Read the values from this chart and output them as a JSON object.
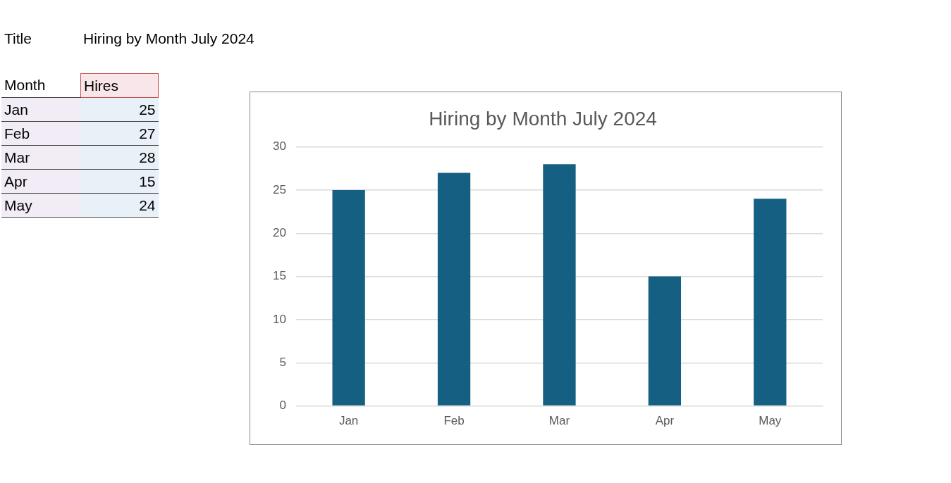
{
  "chart_data": [
    {
      "type": "other",
      "annotations": [
        "Title",
        "Hiring by Month July 2024",
        "Month",
        "Hires"
      ],
      "categories": [
        "Jan",
        "Feb",
        "Mar",
        "Apr",
        "May"
      ],
      "values": [
        25,
        27,
        28,
        15,
        24
      ],
      "value_labels": [
        "25",
        "27",
        "28",
        "15",
        "24"
      ]
    },
    {
      "type": "bar",
      "title": "Hiring by Month July 2024",
      "categories": [
        "Jan",
        "Feb",
        "Mar",
        "Apr",
        "May"
      ],
      "values": [
        25,
        27,
        28,
        15,
        24
      ],
      "color": "#156082",
      "ylim": [
        0,
        30
      ],
      "yticks": [
        0,
        5,
        10,
        15,
        20,
        25,
        30
      ],
      "grid": "y"
    }
  ]
}
